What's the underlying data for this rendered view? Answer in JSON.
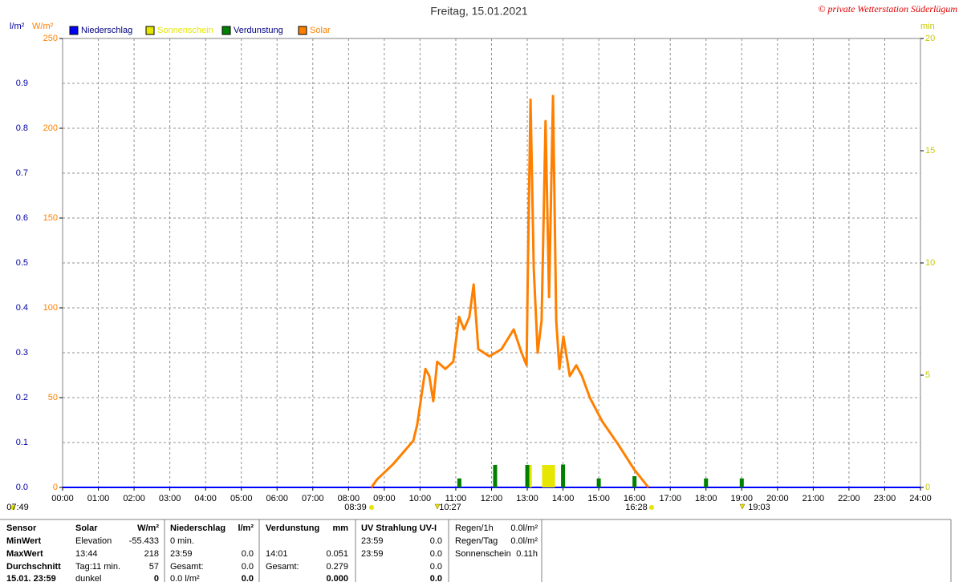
{
  "chart_data": {
    "type": "line",
    "title": "Freitag, 15.01.2021",
    "copyright": "© private Wetterstation Süderlügum",
    "ylabel": "l/m²",
    "y2label": "W/m²",
    "y3label": "min",
    "ylim": [
      0,
      1
    ],
    "yticks": [
      {
        "value": 0,
        "label": "0.0"
      },
      0.1,
      0.2,
      0.3,
      0.4,
      0.5,
      0.6,
      0.7,
      0.8,
      0.9
    ],
    "y2lim": [
      0,
      250
    ],
    "y2ticks": [
      0,
      50,
      100,
      150,
      200,
      250
    ],
    "y3lim": [
      0,
      20
    ],
    "y3ticks": [
      0,
      5,
      10,
      15,
      20
    ],
    "xlim": [
      0,
      24
    ],
    "xticks": [
      {
        "value": 0,
        "label": "00:00"
      },
      {
        "value": 1,
        "label": "01:00"
      },
      {
        "value": 2,
        "label": "02:00"
      },
      {
        "value": 3,
        "label": "03:00"
      },
      {
        "value": 4,
        "label": "04:00"
      },
      {
        "value": 5,
        "label": "05:00"
      },
      {
        "value": 6,
        "label": "06:00"
      },
      {
        "value": 7,
        "label": "07:00"
      },
      {
        "value": 8,
        "label": "08:00"
      },
      {
        "value": 9,
        "label": "09:00"
      },
      {
        "value": 10,
        "label": "10:00"
      },
      {
        "value": 11,
        "label": "11:00"
      },
      {
        "value": 12,
        "label": "12:00"
      },
      {
        "value": 13,
        "label": "13:00"
      },
      {
        "value": 14,
        "label": "14:00"
      },
      {
        "value": 15,
        "label": "15:00"
      },
      {
        "value": 16,
        "label": "16:00"
      },
      {
        "value": 17,
        "label": "17:00"
      },
      {
        "value": 18,
        "label": "18:00"
      },
      {
        "value": 19,
        "label": "19:00"
      },
      {
        "value": 20,
        "label": "20:00"
      },
      {
        "value": 21,
        "label": "21:00"
      },
      {
        "value": 22,
        "label": "22:00"
      },
      {
        "value": 23,
        "label": "23:00"
      },
      {
        "value": 24,
        "label": "24:00"
      }
    ],
    "grid": true,
    "series": [
      {
        "name": "Niederschlag",
        "color": "#0000ff",
        "type": "line",
        "axis": "y",
        "x": [
          0,
          24
        ],
        "values": [
          0,
          0
        ]
      },
      {
        "name": "Sonnenschein",
        "color": "#e6e600",
        "type": "bar",
        "axis": "y3",
        "x": [
          13.07,
          13.47,
          13.55,
          13.64,
          13.72
        ],
        "values": [
          1,
          1,
          1,
          1,
          1
        ]
      },
      {
        "name": "Verdunstung",
        "color": "#008000",
        "type": "bar",
        "axis": "y",
        "x": [
          11.1,
          12.1,
          13.0,
          14.0,
          15.0,
          16.0,
          18.0,
          19.0
        ],
        "values": [
          0.02,
          0.05,
          0.05,
          0.051,
          0.02,
          0.025,
          0.02,
          0.02
        ]
      },
      {
        "name": "Solar",
        "color": "#ff8000",
        "type": "line",
        "axis": "y2",
        "x": [
          8.64,
          8.8,
          9.25,
          9.81,
          9.92,
          10.15,
          10.26,
          10.37,
          10.48,
          10.71,
          10.93,
          11.09,
          11.23,
          11.38,
          11.5,
          11.63,
          11.94,
          12.28,
          12.62,
          12.84,
          12.98,
          13.02,
          13.09,
          13.18,
          13.29,
          13.4,
          13.51,
          13.61,
          13.72,
          13.81,
          13.9,
          14.01,
          14.19,
          14.37,
          14.53,
          14.75,
          15.09,
          15.54,
          15.99,
          16.39
        ],
        "values": [
          0,
          4.5,
          13,
          26,
          35,
          66,
          62,
          48,
          70,
          66,
          70,
          95,
          88,
          95,
          113,
          77,
          73,
          77,
          88,
          75,
          68,
          126,
          216,
          122,
          75,
          93,
          204,
          106,
          218,
          93,
          66,
          84,
          62,
          68,
          62,
          50,
          37,
          24,
          10,
          0
        ]
      }
    ],
    "time_labels": [
      "07:49",
      "08:39",
      "10:27",
      "16:28",
      "19:03"
    ]
  },
  "stats": {
    "row_headers": [
      "Sensor",
      "MinWert",
      "MaxWert",
      "Durchschnitt",
      "15.01. 23:59"
    ],
    "groups": [
      {
        "title": "Solar",
        "unit": "W/m²",
        "rows": [
          [
            "Elevation",
            "-55.433"
          ],
          [
            "13:44",
            "218"
          ],
          [
            "Tag:11 min.",
            "57"
          ],
          [
            "dunkel",
            "0"
          ]
        ]
      },
      {
        "title": "Niederschlag",
        "unit": "l/m²",
        "rows": [
          [
            "0 min.",
            null
          ],
          [
            "23:59",
            "0.0"
          ],
          [
            "Gesamt:",
            "0.0"
          ],
          [
            "0.0 l/m²",
            "0.0"
          ]
        ]
      },
      {
        "title": "Verdunstung",
        "unit": "mm",
        "rows": [
          [
            null,
            null
          ],
          [
            "14:01",
            "0.051"
          ],
          [
            "Gesamt:",
            "0.279"
          ],
          [
            null,
            "0.000"
          ]
        ]
      },
      {
        "title": "UV Strahlung UV-I",
        "unit": null,
        "rows": [
          [
            "23:59",
            "0.0"
          ],
          [
            "23:59",
            "0.0"
          ],
          [
            null,
            "0.0"
          ],
          [
            null,
            "0.0"
          ]
        ]
      }
    ],
    "info": [
      [
        "Regen/1h",
        "0.0l/m²"
      ],
      [
        "Regen/Tag",
        "0.0l/m²"
      ],
      [
        "Sonnenschein",
        "0.11h"
      ]
    ]
  }
}
